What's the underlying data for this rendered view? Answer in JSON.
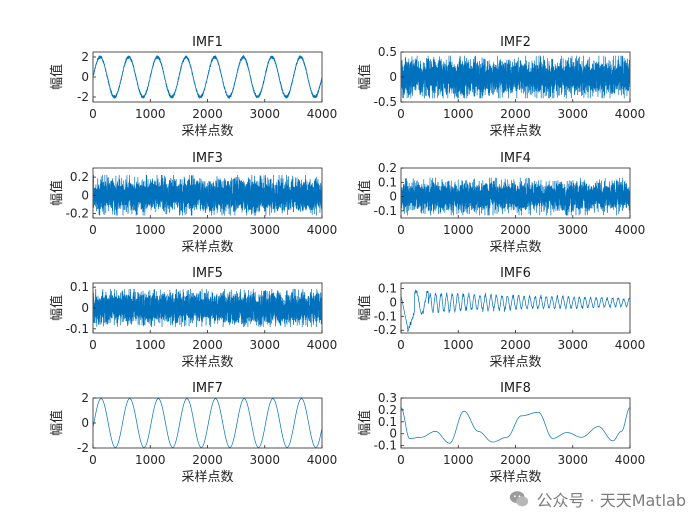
{
  "watermark": {
    "text": "公众号 · 天天Matlab",
    "icon": "wechat-icon"
  },
  "style": {
    "line_color": "#0072BD"
  },
  "chart_data": [
    {
      "type": "line",
      "title": "IMF1",
      "xlabel": "采样点数",
      "ylabel": "幅值",
      "xlim": [
        0,
        4000
      ],
      "ylim": [
        -2.5,
        2.5
      ],
      "xticks": [
        0,
        1000,
        2000,
        3000,
        4000
      ],
      "yticks": [
        -2,
        0,
        2
      ],
      "series": [
        {
          "kind": "sine+noise",
          "n": 4000,
          "amplitude": 2.0,
          "cycles": 8,
          "noise": 0.25
        }
      ]
    },
    {
      "type": "line",
      "title": "IMF2",
      "xlabel": "采样点数",
      "ylabel": "幅值",
      "xlim": [
        0,
        4000
      ],
      "ylim": [
        -0.5,
        0.5
      ],
      "xticks": [
        0,
        1000,
        2000,
        3000,
        4000
      ],
      "yticks": [
        -0.5,
        0,
        0.5
      ],
      "series": [
        {
          "kind": "noise",
          "n": 4000,
          "amplitude": 0.42
        }
      ]
    },
    {
      "type": "line",
      "title": "IMF3",
      "xlabel": "采样点数",
      "ylabel": "幅值",
      "xlim": [
        0,
        4000
      ],
      "ylim": [
        -0.25,
        0.3
      ],
      "xticks": [
        0,
        1000,
        2000,
        3000,
        4000
      ],
      "yticks": [
        -0.2,
        0,
        0.2
      ],
      "series": [
        {
          "kind": "noise",
          "n": 4000,
          "amplitude": 0.22
        }
      ]
    },
    {
      "type": "line",
      "title": "IMF4",
      "xlabel": "采样点数",
      "ylabel": "幅值",
      "xlim": [
        0,
        4000
      ],
      "ylim": [
        -0.15,
        0.2
      ],
      "xticks": [
        0,
        1000,
        2000,
        3000,
        4000
      ],
      "yticks": [
        -0.1,
        0,
        0.1,
        0.2
      ],
      "series": [
        {
          "kind": "noise",
          "n": 4000,
          "amplitude": 0.13
        }
      ]
    },
    {
      "type": "line",
      "title": "IMF5",
      "xlabel": "采样点数",
      "ylabel": "幅值",
      "xlim": [
        0,
        4000
      ],
      "ylim": [
        -0.12,
        0.12
      ],
      "xticks": [
        0,
        1000,
        2000,
        3000,
        4000
      ],
      "yticks": [
        -0.1,
        0,
        0.1
      ],
      "series": [
        {
          "kind": "noise",
          "n": 4000,
          "amplitude": 0.09
        }
      ]
    },
    {
      "type": "line",
      "title": "IMF6",
      "xlabel": "采样点数",
      "ylabel": "幅值",
      "xlim": [
        0,
        4000
      ],
      "ylim": [
        -0.22,
        0.14
      ],
      "xticks": [
        0,
        1000,
        2000,
        3000,
        4000
      ],
      "yticks": [
        -0.2,
        -0.1,
        0,
        0.1
      ],
      "series": [
        {
          "kind": "transient",
          "n": 800,
          "amplitude": 0.035,
          "start_min": -0.21
        }
      ]
    },
    {
      "type": "line",
      "title": "IMF7",
      "xlabel": "采样点数",
      "ylabel": "幅值",
      "xlim": [
        0,
        4000
      ],
      "ylim": [
        -2,
        2
      ],
      "xticks": [
        0,
        1000,
        2000,
        3000,
        4000
      ],
      "yticks": [
        -2,
        0,
        2
      ],
      "series": [
        {
          "kind": "sine",
          "n": 1600,
          "amplitude": 1.95,
          "cycles": 8
        }
      ]
    },
    {
      "type": "line",
      "title": "IMF8",
      "xlabel": "采样点数",
      "ylabel": "幅值",
      "xlim": [
        0,
        4000
      ],
      "ylim": [
        -0.12,
        0.3
      ],
      "xticks": [
        0,
        1000,
        2000,
        3000,
        4000
      ],
      "yticks": [
        -0.1,
        0,
        0.1,
        0.2,
        0.3
      ],
      "series": [
        {
          "kind": "points",
          "x": [
            0,
            150,
            350,
            600,
            850,
            1100,
            1350,
            1600,
            1850,
            2100,
            2400,
            2650,
            2900,
            3150,
            3450,
            3700,
            3850,
            4000
          ],
          "y": [
            0.22,
            -0.04,
            -0.03,
            0.02,
            -0.08,
            0.19,
            0.02,
            -0.07,
            -0.03,
            0.15,
            0.18,
            -0.04,
            0.01,
            -0.03,
            0.06,
            -0.06,
            0.02,
            0.22
          ]
        }
      ]
    }
  ]
}
